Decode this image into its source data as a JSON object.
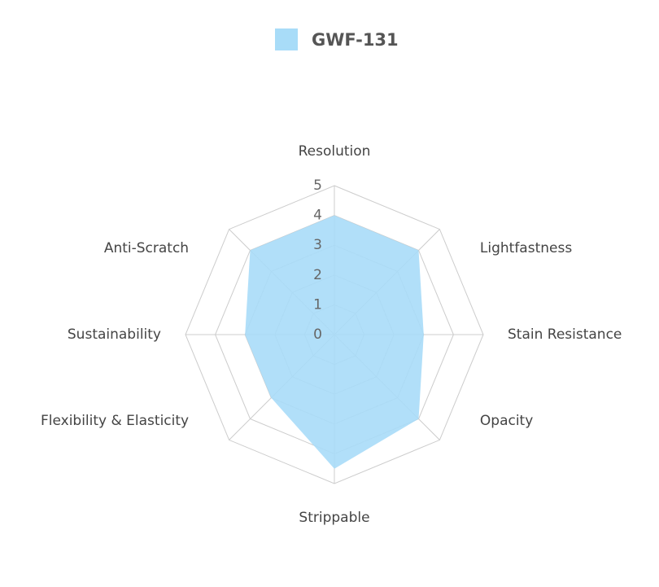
{
  "chart_data": {
    "type": "radar",
    "categories": [
      "Resolution",
      "Lightfastness",
      "Stain Resistance",
      "Opacity",
      "Strippable",
      "Flexibility & Elasticity",
      "Sustainability",
      "Anti-Scratch"
    ],
    "series": [
      {
        "name": "GWF-131",
        "color": "#a8dcf8",
        "values": [
          4,
          4,
          3,
          4,
          4.5,
          3,
          3,
          4
        ]
      }
    ],
    "ylim": [
      0,
      5
    ],
    "yticks": [
      0,
      1,
      2,
      3,
      4,
      5
    ],
    "grid": true,
    "legend": "top"
  }
}
